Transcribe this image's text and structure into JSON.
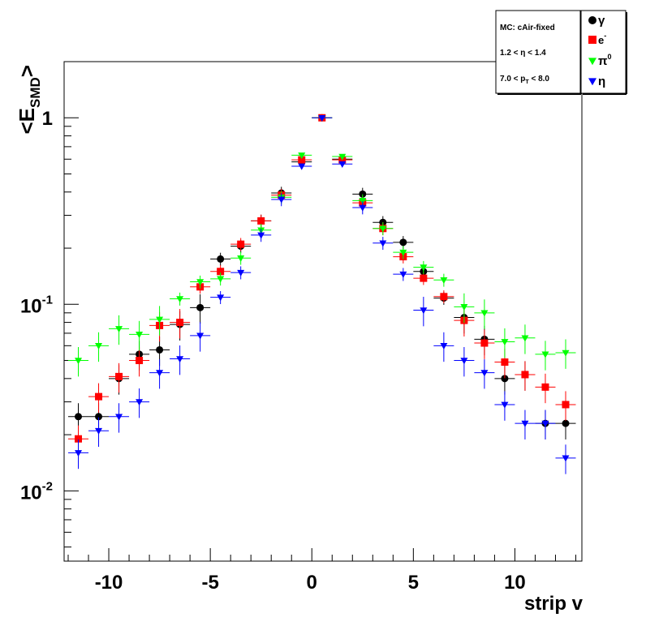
{
  "chart_data": {
    "type": "scatter",
    "title": "",
    "xlabel": "strip v",
    "ylabel": "<E_SMD>",
    "ylabel_parts": {
      "prefix": "<E",
      "sub": "SMD",
      "suffix": ">"
    },
    "xlim": [
      -12.2,
      13.3
    ],
    "ylim": [
      0.0042,
      2.0
    ],
    "y_scale": "log",
    "grid": false,
    "x_ticks": [
      -10,
      -5,
      0,
      5,
      10
    ],
    "x_tick_labels": [
      "-10",
      "-5",
      "0",
      "5",
      "10"
    ],
    "y_ticks": [
      0.01,
      0.1,
      1
    ],
    "y_tick_labels": [
      {
        "base": "10",
        "exp": "-2"
      },
      {
        "base": "10",
        "exp": "-1"
      },
      {
        "base": "1",
        "exp": ""
      }
    ],
    "info_box": [
      "MC: cAir-fixed",
      "1.2 < η < 1.4",
      "7.0 < p_T < 8.0"
    ],
    "info_box_lines": [
      {
        "text": "MC: cAir-fixed",
        "sub": "",
        "after": ""
      },
      {
        "text": "1.2 < η < 1.4",
        "sub": "",
        "after": ""
      },
      {
        "text": "7.0 < p",
        "sub": "T",
        "after": " < 8.0"
      }
    ],
    "legend_position": "top-right",
    "series": [
      {
        "name": "γ",
        "label_base": "γ",
        "label_sup": "",
        "marker": "circle",
        "color": "#000000",
        "x": [
          -11.5,
          -10.5,
          -9.5,
          -8.5,
          -7.5,
          -6.5,
          -5.5,
          -4.5,
          -3.5,
          -2.5,
          -1.5,
          -0.5,
          0.5,
          1.5,
          2.5,
          3.5,
          4.5,
          5.5,
          6.5,
          7.5,
          8.5,
          9.5,
          10.5,
          11.5,
          12.5
        ],
        "y": [
          0.025,
          0.025,
          0.04,
          0.054,
          0.057,
          0.078,
          0.096,
          0.175,
          0.205,
          0.28,
          0.395,
          0.58,
          1.0,
          0.6,
          0.39,
          0.275,
          0.215,
          0.15,
          0.108,
          0.085,
          0.065,
          0.04,
          0.042,
          0.023,
          0.023
        ]
      },
      {
        "name": "e-",
        "label_base": "e",
        "label_sup": "-",
        "marker": "square",
        "color": "#ff0000",
        "x": [
          -11.5,
          -10.5,
          -9.5,
          -8.5,
          -7.5,
          -6.5,
          -5.5,
          -4.5,
          -3.5,
          -2.5,
          -1.5,
          -0.5,
          0.5,
          1.5,
          2.5,
          3.5,
          4.5,
          5.5,
          6.5,
          7.5,
          8.5,
          9.5,
          10.5,
          11.5,
          12.5
        ],
        "y": [
          0.019,
          0.032,
          0.041,
          0.05,
          0.077,
          0.08,
          0.124,
          0.15,
          0.21,
          0.28,
          0.385,
          0.595,
          1.0,
          0.595,
          0.35,
          0.255,
          0.18,
          0.138,
          0.11,
          0.082,
          0.062,
          0.049,
          0.042,
          0.036,
          0.029
        ]
      },
      {
        "name": "π0",
        "label_base": "π",
        "label_sup": "0",
        "marker": "triangle-down",
        "color": "#00ff00",
        "x": [
          -11.5,
          -10.5,
          -9.5,
          -8.5,
          -7.5,
          -6.5,
          -5.5,
          -4.5,
          -3.5,
          -2.5,
          -1.5,
          -0.5,
          0.5,
          1.5,
          2.5,
          3.5,
          4.5,
          5.5,
          6.5,
          7.5,
          8.5,
          9.5,
          10.5,
          11.5,
          12.5
        ],
        "y": [
          0.05,
          0.06,
          0.074,
          0.069,
          0.083,
          0.107,
          0.132,
          0.137,
          0.177,
          0.25,
          0.375,
          0.63,
          1.0,
          0.62,
          0.36,
          0.255,
          0.19,
          0.158,
          0.135,
          0.097,
          0.09,
          0.063,
          0.066,
          0.054,
          0.055
        ]
      },
      {
        "name": "η",
        "label_base": "η",
        "label_sup": "",
        "marker": "triangle-down",
        "color": "#0000ff",
        "x": [
          -11.5,
          -10.5,
          -9.5,
          -8.5,
          -7.5,
          -6.5,
          -5.5,
          -4.5,
          -3.5,
          -2.5,
          -1.5,
          -0.5,
          0.5,
          1.5,
          2.5,
          3.5,
          4.5,
          5.5,
          6.5,
          7.5,
          8.5,
          9.5,
          10.5,
          11.5,
          12.5
        ],
        "y": [
          0.016,
          0.021,
          0.025,
          0.03,
          0.043,
          0.051,
          0.068,
          0.109,
          0.148,
          0.235,
          0.365,
          0.55,
          1.0,
          0.565,
          0.33,
          0.213,
          0.145,
          0.093,
          0.06,
          0.05,
          0.043,
          0.029,
          0.023,
          0.023,
          0.015
        ]
      }
    ]
  }
}
